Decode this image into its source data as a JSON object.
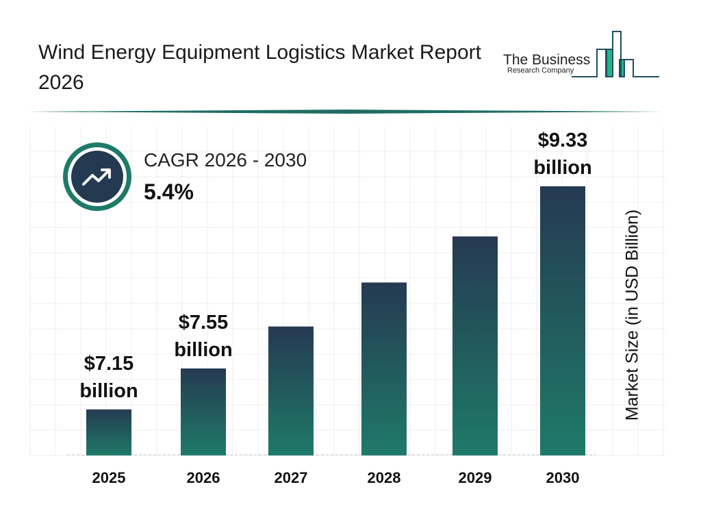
{
  "header": {
    "title": "Wind Energy Equipment Logistics Market Report 2026"
  },
  "logo": {
    "line1": "The Business",
    "line2": "Research Company",
    "colors": {
      "dark": "#1f4e5f",
      "green": "#1fb58a"
    }
  },
  "cagr": {
    "label": "CAGR 2026 - 2030",
    "value": "5.4%",
    "icon": "trending-up-icon"
  },
  "chart_data": {
    "type": "bar",
    "title": "",
    "xlabel": "",
    "ylabel": "Market Size (in USD Billion)",
    "categories": [
      "2025",
      "2026",
      "2027",
      "2028",
      "2029",
      "2030"
    ],
    "values": [
      7.15,
      7.55,
      7.96,
      8.39,
      8.84,
      9.33
    ],
    "data_labels": [
      [
        "$7.15",
        "billion"
      ],
      [
        "$7.55",
        "billion"
      ],
      null,
      null,
      null,
      [
        "$9.33",
        "billion"
      ]
    ],
    "grid": true,
    "colors": {
      "bar_top": "#253a52",
      "bar_bottom": "#1f7a68"
    }
  }
}
